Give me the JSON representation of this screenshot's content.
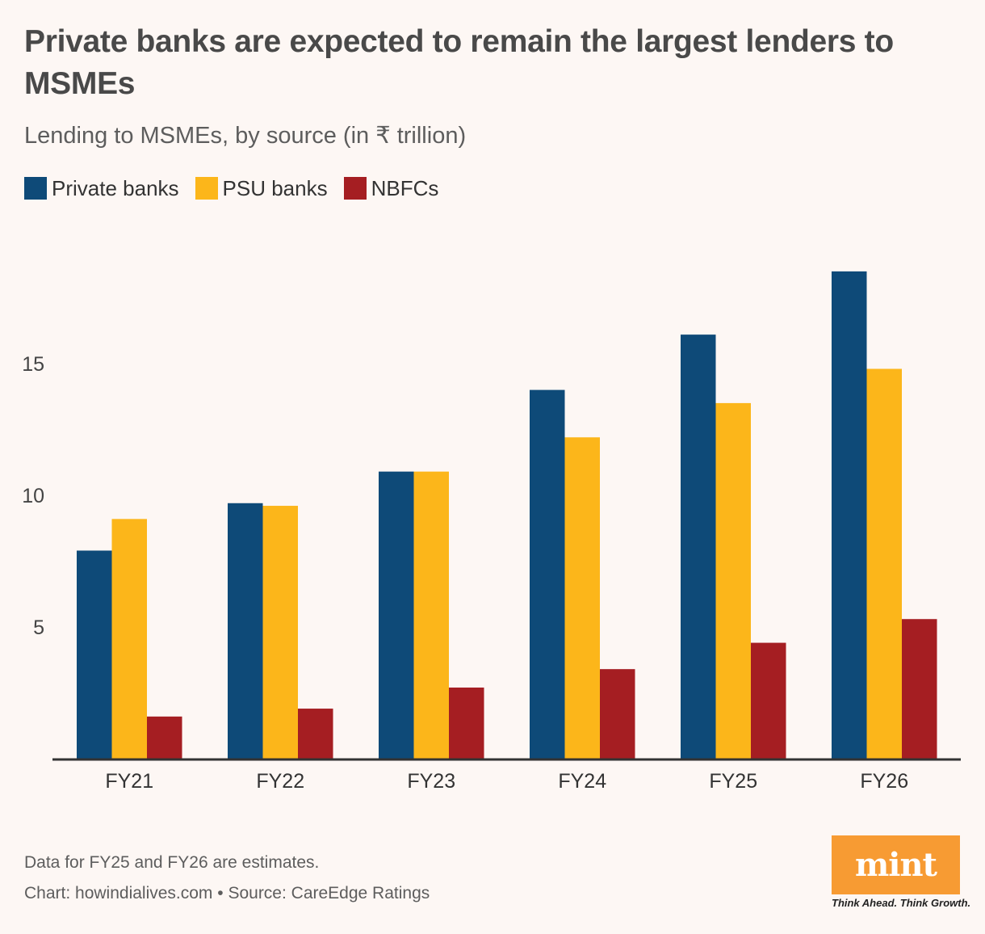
{
  "colors": {
    "background": "#fdf7f4",
    "private": "#0e4a78",
    "psu": "#fcb61a",
    "nbfc": "#a51e22",
    "axis": "#333333",
    "logo_bg": "#f79b33"
  },
  "legend": [
    {
      "label": "Private banks",
      "color": "#0e4a78"
    },
    {
      "label": "PSU banks",
      "color": "#fcb61a"
    },
    {
      "label": "NBFCs",
      "color": "#a51e22"
    }
  ],
  "footer": {
    "note": "Data for FY25 and FY26 are estimates.",
    "source": "Chart: howindialives.com • Source: CareEdge Ratings"
  },
  "logo": {
    "text": "mint",
    "tagline": "Think Ahead. Think Growth."
  },
  "chart_data": {
    "type": "bar",
    "title": "Private banks are expected to remain the largest lenders to MSMEs",
    "subtitle": "Lending to MSMEs, by source (in ₹ trillion)",
    "xlabel": "",
    "ylabel": "",
    "categories": [
      "FY21",
      "FY22",
      "FY23",
      "FY24",
      "FY25",
      "FY26"
    ],
    "series": [
      {
        "name": "Private banks",
        "values": [
          7.9,
          9.7,
          10.9,
          14.0,
          16.1,
          18.5
        ]
      },
      {
        "name": "PSU banks",
        "values": [
          9.1,
          9.6,
          10.9,
          12.2,
          13.5,
          14.8
        ]
      },
      {
        "name": "NBFCs",
        "values": [
          1.6,
          1.9,
          2.7,
          3.4,
          4.4,
          5.3
        ]
      }
    ],
    "yticks": [
      5,
      10,
      15
    ],
    "ylim": [
      0,
      19
    ],
    "grid": false,
    "legend_position": "top-left"
  }
}
